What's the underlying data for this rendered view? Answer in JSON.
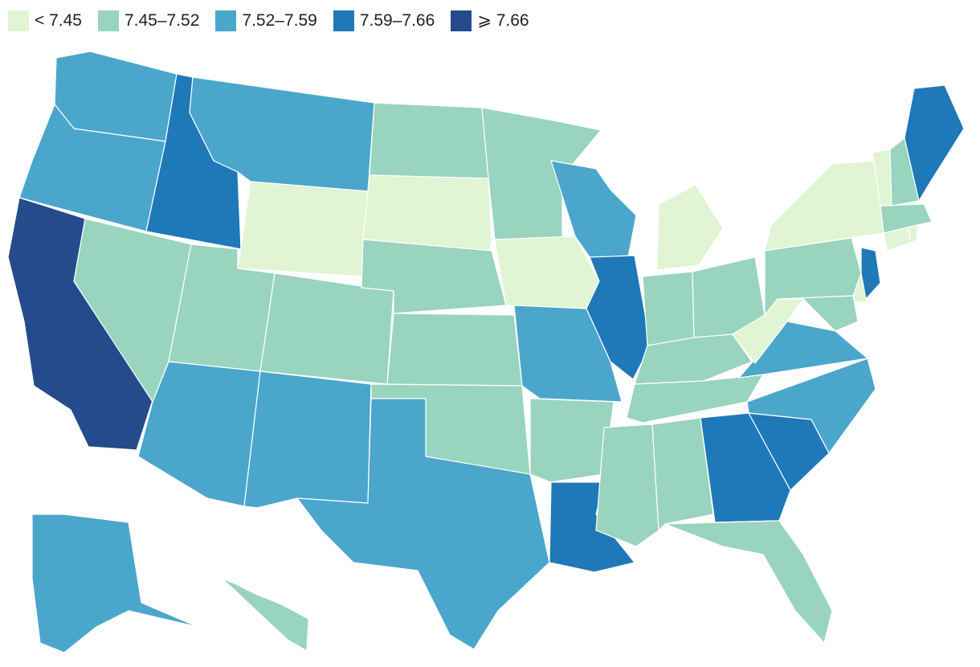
{
  "legend": [
    {
      "label": "< 7.45",
      "color": "#e1f4d3"
    },
    {
      "label": "7.45–7.52",
      "color": "#98d4be"
    },
    {
      "label": "7.52–7.59",
      "color": "#4aa6cb"
    },
    {
      "label": "7.59–7.66",
      "color": "#1f78b8"
    },
    {
      "label": "⩾ 7.66",
      "color": "#254b8c"
    }
  ],
  "map_data": {
    "type": "choropleth",
    "region": "United States",
    "class_breaks": [
      7.45,
      7.52,
      7.59,
      7.66
    ],
    "states": {
      "WA": 2,
      "OR": 2,
      "CA": 4,
      "NV": 1,
      "ID": 3,
      "MT": 2,
      "WY": 0,
      "UT": 1,
      "AZ": 2,
      "CO": 1,
      "NM": 2,
      "ND": 1,
      "SD": 0,
      "NE": 1,
      "KS": 1,
      "OK": 1,
      "TX": 2,
      "MN": 1,
      "IA": 0,
      "MO": 2,
      "AR": 1,
      "LA": 3,
      "WI": 2,
      "IL": 3,
      "MI": 0,
      "IN": 1,
      "OH": 1,
      "KY": 1,
      "TN": 1,
      "MS": 1,
      "AL": 1,
      "GA": 3,
      "FL": 1,
      "SC": 3,
      "NC": 2,
      "VA": 2,
      "WV": 0,
      "MD": 1,
      "DE": 0,
      "PA": 1,
      "NJ": 3,
      "NY": 0,
      "CT": 0,
      "RI": 0,
      "MA": 1,
      "VT": 0,
      "NH": 1,
      "ME": 3,
      "AK": 2,
      "HI": 1
    }
  }
}
